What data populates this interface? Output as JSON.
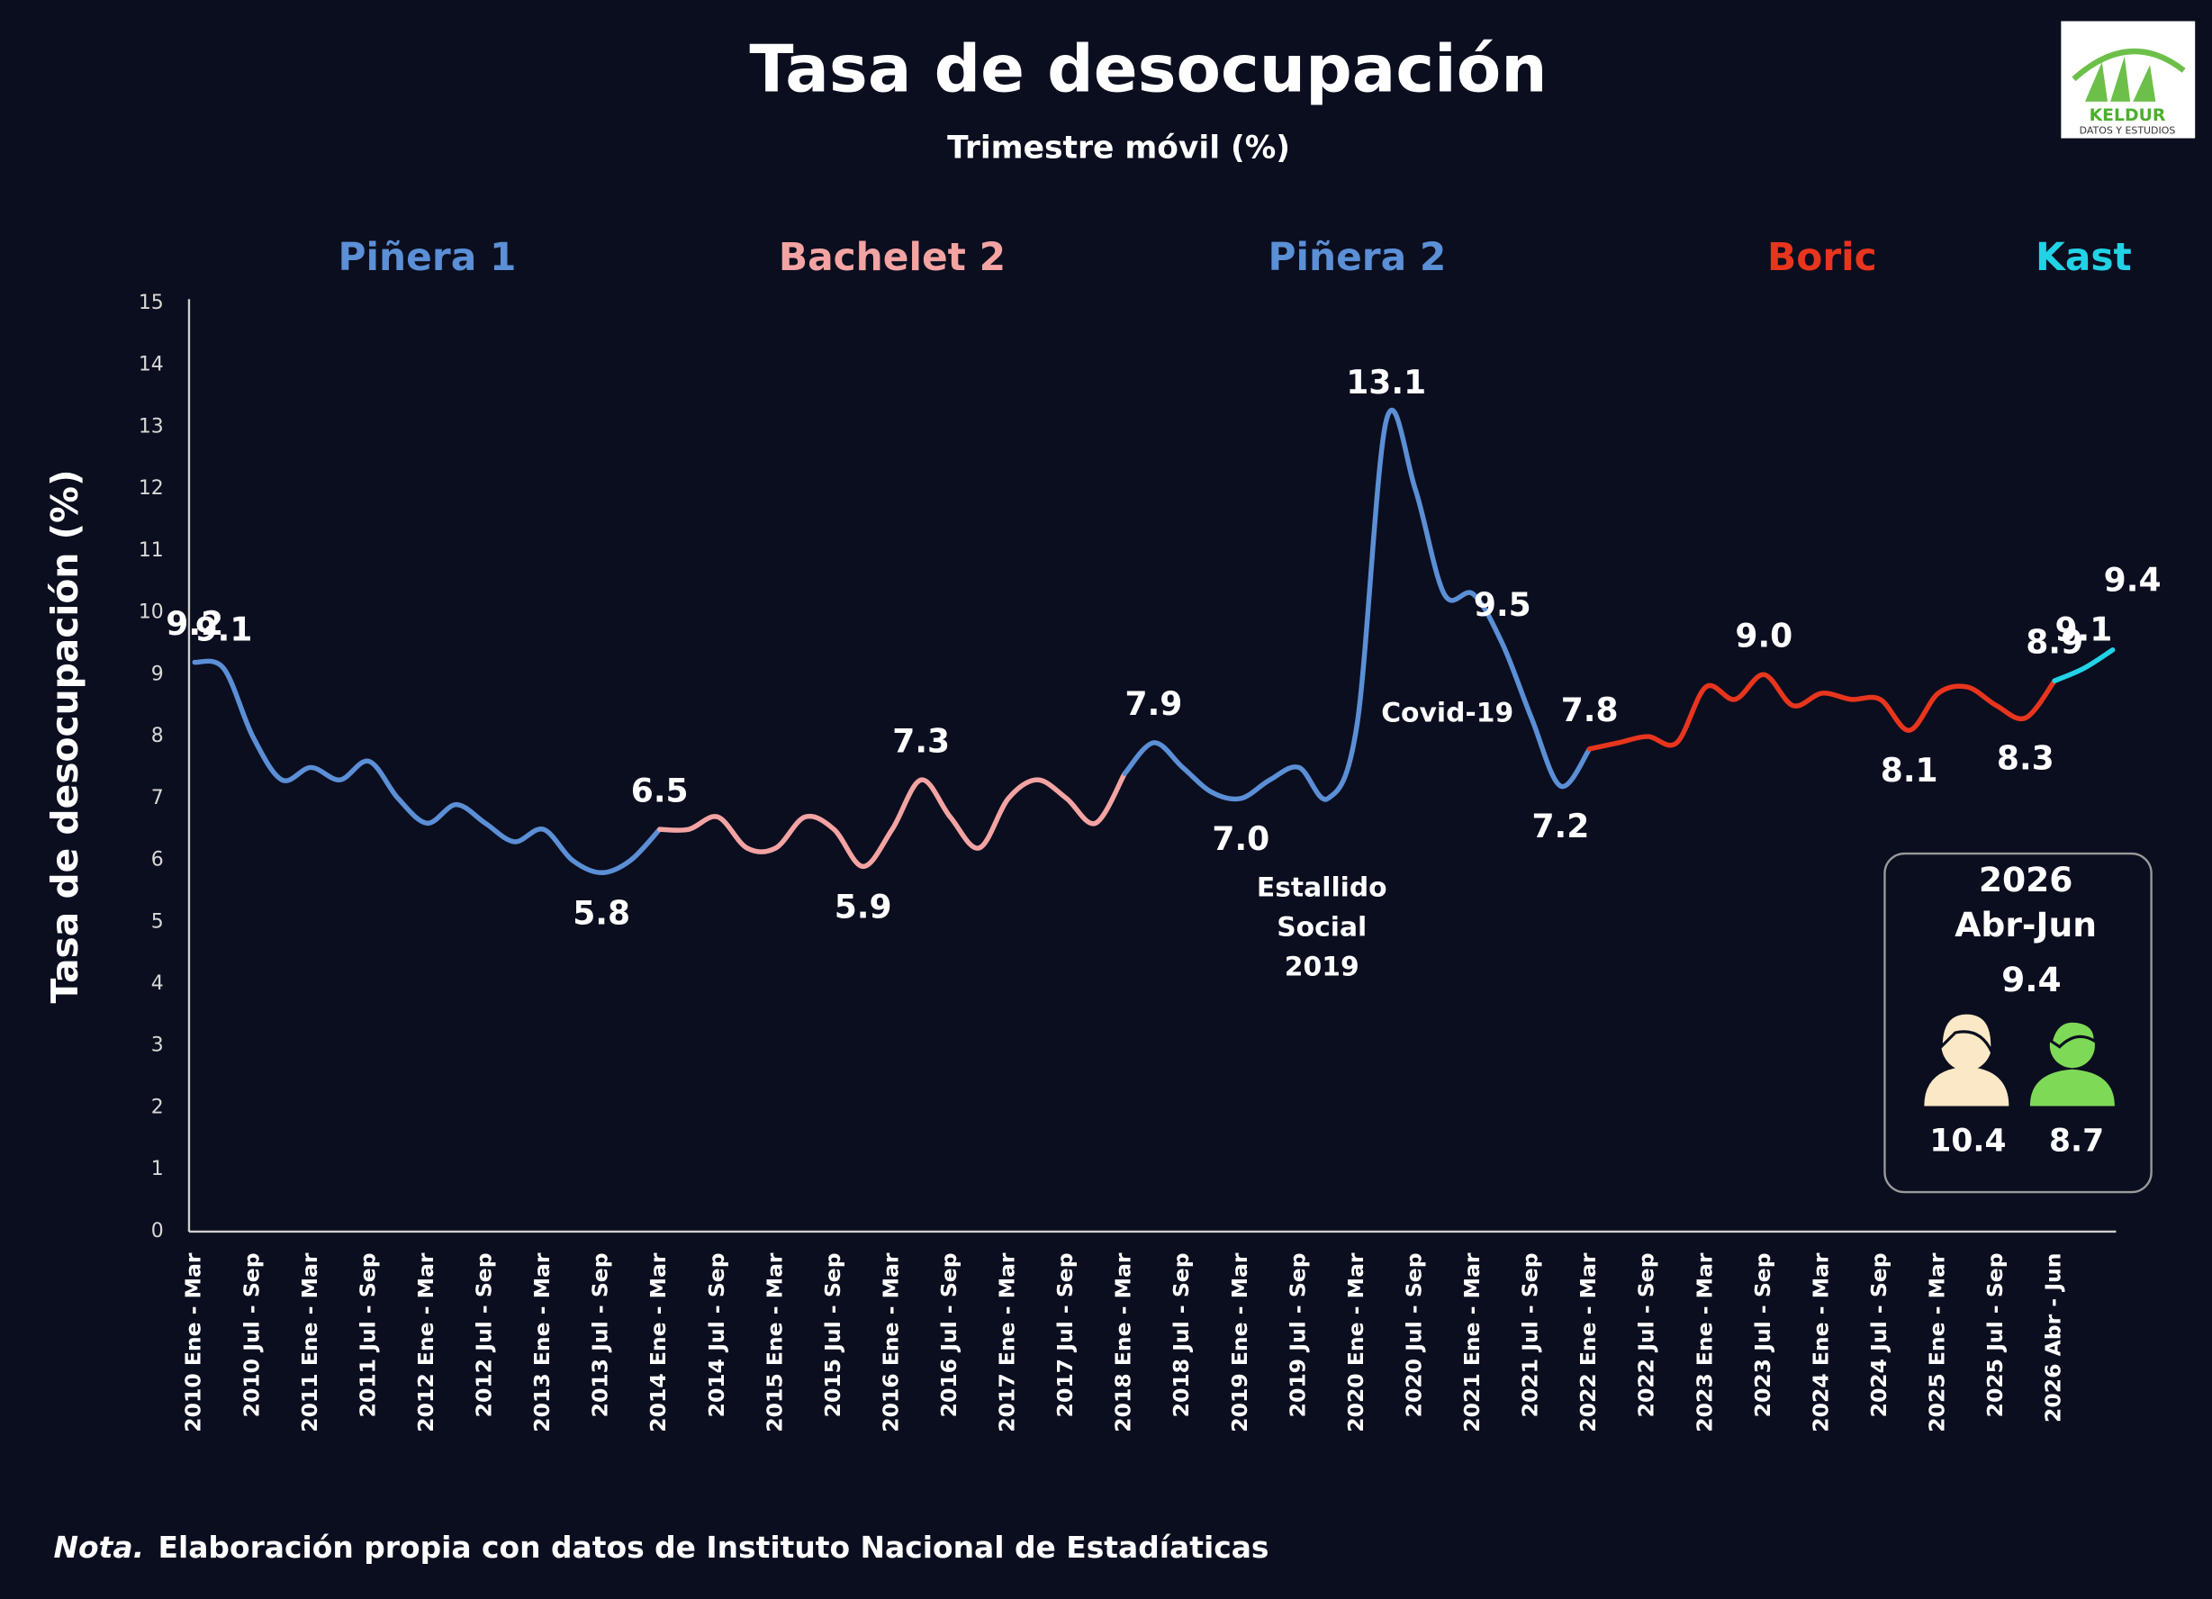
{
  "chart_data": {
    "type": "line",
    "title": "Tasa de desocupación",
    "subtitle": "Trimestre móvil (%)",
    "y_label": "Tasa de desocupación (%)",
    "categories": [
      "2010 Ene - Mar",
      null,
      "2010 Jul - Sep",
      null,
      "2011 Ene - Mar",
      null,
      "2011 Jul - Sep",
      null,
      "2012 Ene - Mar",
      null,
      "2012 Jul - Sep",
      null,
      "2013 Ene - Mar",
      null,
      "2013 Jul - Sep",
      null,
      "2014 Ene - Mar",
      null,
      "2014 Jul - Sep",
      null,
      "2015 Ene - Mar",
      null,
      "2015 Jul - Sep",
      null,
      "2016 Ene - Mar",
      null,
      "2016 Jul - Sep",
      null,
      "2017 Ene - Mar",
      null,
      "2017 Jul - Sep",
      null,
      "2018 Ene - Mar",
      null,
      "2018 Jul - Sep",
      null,
      "2019 Ene - Mar",
      null,
      "2019 Jul - Sep",
      null,
      "2020 Ene - Mar",
      null,
      "2020 Jul - Sep",
      null,
      "2021 Ene - Mar",
      null,
      "2021 Jul - Sep",
      null,
      "2022 Ene - Mar",
      null,
      "2022 Jul - Sep",
      null,
      "2023 Ene - Mar",
      null,
      "2023 Jul - Sep",
      null,
      "2024 Ene - Mar",
      null,
      "2024 Jul - Sep",
      null,
      "2025 Ene - Mar",
      null,
      "2025 Jul - Sep",
      null,
      "2026 Abr - Jun",
      null,
      null
    ],
    "series": [
      {
        "name": "Piñera 1",
        "color": "#5b8fd6",
        "values": [
          9.2,
          9.1,
          8.0,
          7.3,
          7.5,
          7.3,
          7.6,
          7.0,
          6.6,
          6.9,
          6.6,
          6.3,
          6.5,
          6.0,
          5.8,
          6.0,
          6.5,
          null,
          null,
          null,
          null,
          null,
          null,
          null,
          null,
          null,
          null,
          null,
          null,
          null,
          null,
          null,
          null,
          null,
          null,
          null,
          null,
          null,
          null,
          null,
          null,
          null,
          null,
          null,
          null,
          null,
          null,
          null,
          null,
          null,
          null,
          null,
          null,
          null,
          null,
          null,
          null,
          null,
          null,
          null,
          null,
          null,
          null,
          null,
          null,
          null,
          null
        ],
        "value_labels": [
          "9.2",
          "9.1",
          null,
          null,
          null,
          null,
          null,
          null,
          null,
          null,
          null,
          null,
          null,
          null,
          "5.8",
          null,
          "6.5",
          null,
          null,
          null,
          null,
          null,
          null,
          null,
          null,
          null,
          null,
          null,
          null,
          null,
          null,
          null,
          null,
          null,
          null,
          null,
          null,
          null,
          null,
          null,
          null,
          null,
          null,
          null,
          null,
          null,
          null,
          null,
          null,
          null,
          null,
          null,
          null,
          null,
          null,
          null,
          null,
          null,
          null,
          null,
          null,
          null,
          null,
          null,
          null,
          null,
          null
        ]
      },
      {
        "name": "Bachelet 2",
        "color": "#f4a3a3",
        "values": [
          null,
          null,
          null,
          null,
          null,
          null,
          null,
          null,
          null,
          null,
          null,
          null,
          null,
          null,
          null,
          null,
          6.5,
          6.5,
          6.7,
          6.2,
          6.2,
          6.7,
          6.5,
          5.9,
          6.5,
          7.3,
          6.7,
          6.2,
          7.0,
          7.3,
          7.0,
          6.6,
          7.4,
          null,
          null,
          null,
          null,
          null,
          null,
          null,
          null,
          null,
          null,
          null,
          null,
          null,
          null,
          null,
          null,
          null,
          null,
          null,
          null,
          null,
          null,
          null,
          null,
          null,
          null,
          null,
          null,
          null,
          null,
          null,
          null,
          null,
          null
        ],
        "value_labels": [
          null,
          null,
          null,
          null,
          null,
          null,
          null,
          null,
          null,
          null,
          null,
          null,
          null,
          null,
          null,
          null,
          null,
          null,
          null,
          null,
          null,
          null,
          null,
          "5.9",
          null,
          "7.3",
          null,
          null,
          null,
          null,
          null,
          null,
          null,
          null,
          null,
          null,
          null,
          null,
          null,
          null,
          null,
          null,
          null,
          null,
          null,
          null,
          null,
          null,
          null,
          null,
          null,
          null,
          null,
          null,
          null,
          null,
          null,
          null,
          null,
          null,
          null,
          null,
          null,
          null,
          null,
          null,
          null
        ]
      },
      {
        "name": "Piñera 2",
        "color": "#5b8fd6",
        "values": [
          null,
          null,
          null,
          null,
          null,
          null,
          null,
          null,
          null,
          null,
          null,
          null,
          null,
          null,
          null,
          null,
          null,
          null,
          null,
          null,
          null,
          null,
          null,
          null,
          null,
          null,
          null,
          null,
          null,
          null,
          null,
          null,
          7.4,
          7.9,
          7.5,
          7.1,
          7.0,
          7.3,
          7.5,
          7.0,
          8.2,
          13.1,
          12.0,
          10.3,
          10.3,
          9.5,
          8.3,
          7.2,
          7.8,
          null,
          null,
          null,
          null,
          null,
          null,
          null,
          null,
          null,
          null,
          null,
          null,
          null,
          null,
          null,
          null,
          null,
          null
        ],
        "value_labels": [
          null,
          null,
          null,
          null,
          null,
          null,
          null,
          null,
          null,
          null,
          null,
          null,
          null,
          null,
          null,
          null,
          null,
          null,
          null,
          null,
          null,
          null,
          null,
          null,
          null,
          null,
          null,
          null,
          null,
          null,
          null,
          null,
          null,
          "7.9",
          null,
          null,
          "7.0",
          null,
          null,
          null,
          null,
          "13.1",
          null,
          null,
          null,
          "9.5",
          null,
          "7.2",
          "7.8",
          null,
          null,
          null,
          null,
          null,
          null,
          null,
          null,
          null,
          null,
          null,
          null,
          null,
          null,
          null,
          null,
          null,
          null
        ]
      },
      {
        "name": "Boric",
        "color": "#e8351d",
        "values": [
          null,
          null,
          null,
          null,
          null,
          null,
          null,
          null,
          null,
          null,
          null,
          null,
          null,
          null,
          null,
          null,
          null,
          null,
          null,
          null,
          null,
          null,
          null,
          null,
          null,
          null,
          null,
          null,
          null,
          null,
          null,
          null,
          null,
          null,
          null,
          null,
          null,
          null,
          null,
          null,
          null,
          null,
          null,
          null,
          null,
          null,
          null,
          null,
          7.8,
          7.9,
          8.0,
          7.9,
          8.8,
          8.6,
          9.0,
          8.5,
          8.7,
          8.6,
          8.6,
          8.1,
          8.7,
          8.8,
          8.5,
          8.3,
          8.9,
          null,
          null
        ],
        "value_labels": [
          null,
          null,
          null,
          null,
          null,
          null,
          null,
          null,
          null,
          null,
          null,
          null,
          null,
          null,
          null,
          null,
          null,
          null,
          null,
          null,
          null,
          null,
          null,
          null,
          null,
          null,
          null,
          null,
          null,
          null,
          null,
          null,
          null,
          null,
          null,
          null,
          null,
          null,
          null,
          null,
          null,
          null,
          null,
          null,
          null,
          null,
          null,
          null,
          null,
          null,
          null,
          null,
          null,
          null,
          "9.0",
          null,
          null,
          null,
          null,
          "8.1",
          null,
          null,
          null,
          "8.3",
          "8.9",
          null,
          null
        ]
      },
      {
        "name": "Kast",
        "color": "#22d3e6",
        "values": [
          null,
          null,
          null,
          null,
          null,
          null,
          null,
          null,
          null,
          null,
          null,
          null,
          null,
          null,
          null,
          null,
          null,
          null,
          null,
          null,
          null,
          null,
          null,
          null,
          null,
          null,
          null,
          null,
          null,
          null,
          null,
          null,
          null,
          null,
          null,
          null,
          null,
          null,
          null,
          null,
          null,
          null,
          null,
          null,
          null,
          null,
          null,
          null,
          null,
          null,
          null,
          null,
          null,
          null,
          null,
          null,
          null,
          null,
          null,
          null,
          null,
          null,
          null,
          null,
          8.9,
          9.1,
          9.4
        ],
        "value_labels": [
          null,
          null,
          null,
          null,
          null,
          null,
          null,
          null,
          null,
          null,
          null,
          null,
          null,
          null,
          null,
          null,
          null,
          null,
          null,
          null,
          null,
          null,
          null,
          null,
          null,
          null,
          null,
          null,
          null,
          null,
          null,
          null,
          null,
          null,
          null,
          null,
          null,
          null,
          null,
          null,
          null,
          null,
          null,
          null,
          null,
          null,
          null,
          null,
          null,
          null,
          null,
          null,
          null,
          null,
          null,
          null,
          null,
          null,
          null,
          null,
          null,
          null,
          null,
          null,
          null,
          "9.1",
          "9.4"
        ]
      }
    ],
    "ylim": [
      0,
      15
    ],
    "yticks": [
      0,
      1,
      2,
      3,
      4,
      5,
      6,
      7,
      8,
      9,
      10,
      11,
      12,
      13,
      14,
      15
    ],
    "grid": false,
    "annotations": [
      {
        "lines": [
          "Estallido",
          "Social",
          "2019"
        ]
      },
      {
        "lines": [
          "Covid-19"
        ]
      }
    ],
    "inset": {
      "year": "2026",
      "period": "Abr-Jun",
      "total": 9.4,
      "women": 10.4,
      "men": 8.7
    }
  },
  "note_label": "Nota.",
  "note": "Elaboración propia con datos de Instituto Nacional de Estadíaticas",
  "logo": {
    "name": "KELDUR",
    "tagline": "DATOS Y ESTUDIOS"
  }
}
